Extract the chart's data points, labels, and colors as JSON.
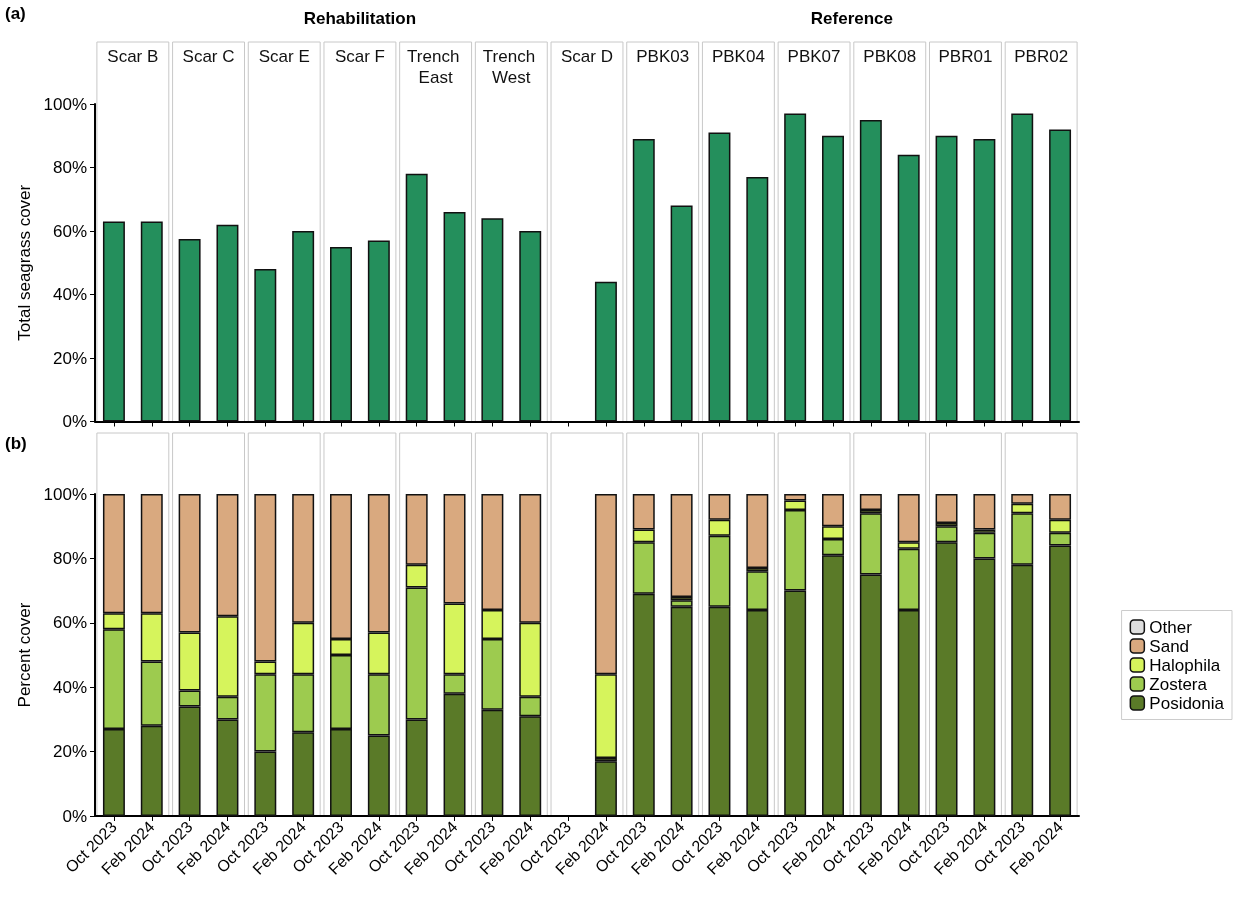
{
  "chart_data": [
    {
      "type": "bar",
      "title": "(a)",
      "ylabel": "Total seagrass cover",
      "categories": [
        "Oct 2023",
        "Feb 2024",
        "Oct 2023",
        "Feb 2024",
        "Oct 2023",
        "Feb 2024",
        "Oct 2023",
        "Feb 2024",
        "Oct 2023",
        "Feb 2024",
        "Oct 2023",
        "Feb 2024",
        "Oct 2023",
        "Feb 2024",
        "Oct 2023",
        "Feb 2024",
        "Oct 2023",
        "Feb 2024",
        "Oct 2023",
        "Feb 2024",
        "Oct 2023",
        "Feb 2024",
        "Oct 2023",
        "Feb 2024",
        "Oct 2023",
        "Feb 2024"
      ],
      "values": [
        63,
        63,
        57.5,
        62,
        48,
        60,
        55,
        57,
        78,
        66,
        64,
        60,
        null,
        44,
        89,
        68,
        91,
        77,
        97,
        90,
        95,
        84,
        90,
        89,
        97,
        92
      ],
      "color": "#248f5c",
      "ylim": [
        0,
        100
      ],
      "yticks": [
        {
          "value": 0,
          "label": "0%"
        },
        {
          "value": 20,
          "label": "20%"
        },
        {
          "value": 40,
          "label": "40%"
        },
        {
          "value": 60,
          "label": "60%"
        },
        {
          "value": 80,
          "label": "80%"
        },
        {
          "value": 100,
          "label": "100%"
        }
      ],
      "annotations": [
        "Scar B",
        "Scar C",
        "Scar E",
        "Scar F",
        "Trench East",
        "Trench West",
        "Scar D",
        "PBK03",
        "PBK04",
        "PBK07",
        "PBK08",
        "PBR01",
        "PBR02",
        "Rehabilitation",
        "Reference"
      ],
      "tick_labels": "y",
      "grid": false,
      "legend": false
    },
    {
      "type": "bar",
      "title": "(b)",
      "ylabel": "Percent cover",
      "stacked": true,
      "categories": [
        "Oct 2023",
        "Feb 2024",
        "Oct 2023",
        "Feb 2024",
        "Oct 2023",
        "Feb 2024",
        "Oct 2023",
        "Feb 2024",
        "Oct 2023",
        "Feb 2024",
        "Oct 2023",
        "Feb 2024",
        "Oct 2023",
        "Feb 2024",
        "Oct 2023",
        "Feb 2024",
        "Oct 2023",
        "Feb 2024",
        "Oct 2023",
        "Feb 2024",
        "Oct 2023",
        "Feb 2024",
        "Oct 2023",
        "Feb 2024",
        "Oct 2023",
        "Feb 2024"
      ],
      "series": [
        {
          "name": "Posidonia",
          "color": "#5a7a28",
          "values": [
            27,
            28,
            34,
            30,
            20,
            26,
            27,
            25,
            30,
            38,
            33,
            31,
            null,
            17,
            69,
            65,
            65,
            64,
            70,
            81,
            75,
            64,
            85,
            80,
            78,
            84
          ]
        },
        {
          "name": "Zostera",
          "color": "#9dcb4f",
          "values": [
            31,
            20,
            5,
            7,
            24,
            18,
            23,
            19,
            41,
            6,
            22,
            6,
            null,
            1,
            16,
            2,
            22,
            12,
            25,
            5,
            19,
            19,
            5,
            8,
            16,
            4
          ]
        },
        {
          "name": "Halophila",
          "color": "#d6f45c",
          "values": [
            5,
            15,
            18,
            25,
            4,
            16,
            5,
            13,
            7,
            22,
            9,
            23,
            null,
            26,
            4,
            1,
            5,
            1,
            3,
            4,
            1,
            2,
            1,
            1,
            3,
            4
          ]
        },
        {
          "name": "Sand",
          "color": "#d9a97f",
          "values": [
            37,
            37,
            43,
            38,
            52,
            40,
            45,
            43,
            22,
            34,
            36,
            40,
            null,
            56,
            11,
            32,
            8,
            23,
            2,
            10,
            5,
            15,
            9,
            11,
            3,
            8
          ]
        },
        {
          "name": "Other",
          "color": "#dedede",
          "values": [
            null,
            null,
            null,
            null,
            null,
            null,
            null,
            null,
            null,
            null,
            null,
            null,
            null,
            null,
            null,
            null,
            null,
            null,
            null,
            null,
            null,
            null,
            null,
            null,
            null,
            null
          ]
        }
      ],
      "ylim": [
        0,
        100
      ],
      "yticks": [
        {
          "value": 0,
          "label": "0%"
        },
        {
          "value": 20,
          "label": "20%"
        },
        {
          "value": 40,
          "label": "40%"
        },
        {
          "value": 60,
          "label": "60%"
        },
        {
          "value": 80,
          "label": "80%"
        },
        {
          "value": 100,
          "label": "100%"
        }
      ],
      "grid": false,
      "legend": "right"
    }
  ]
}
